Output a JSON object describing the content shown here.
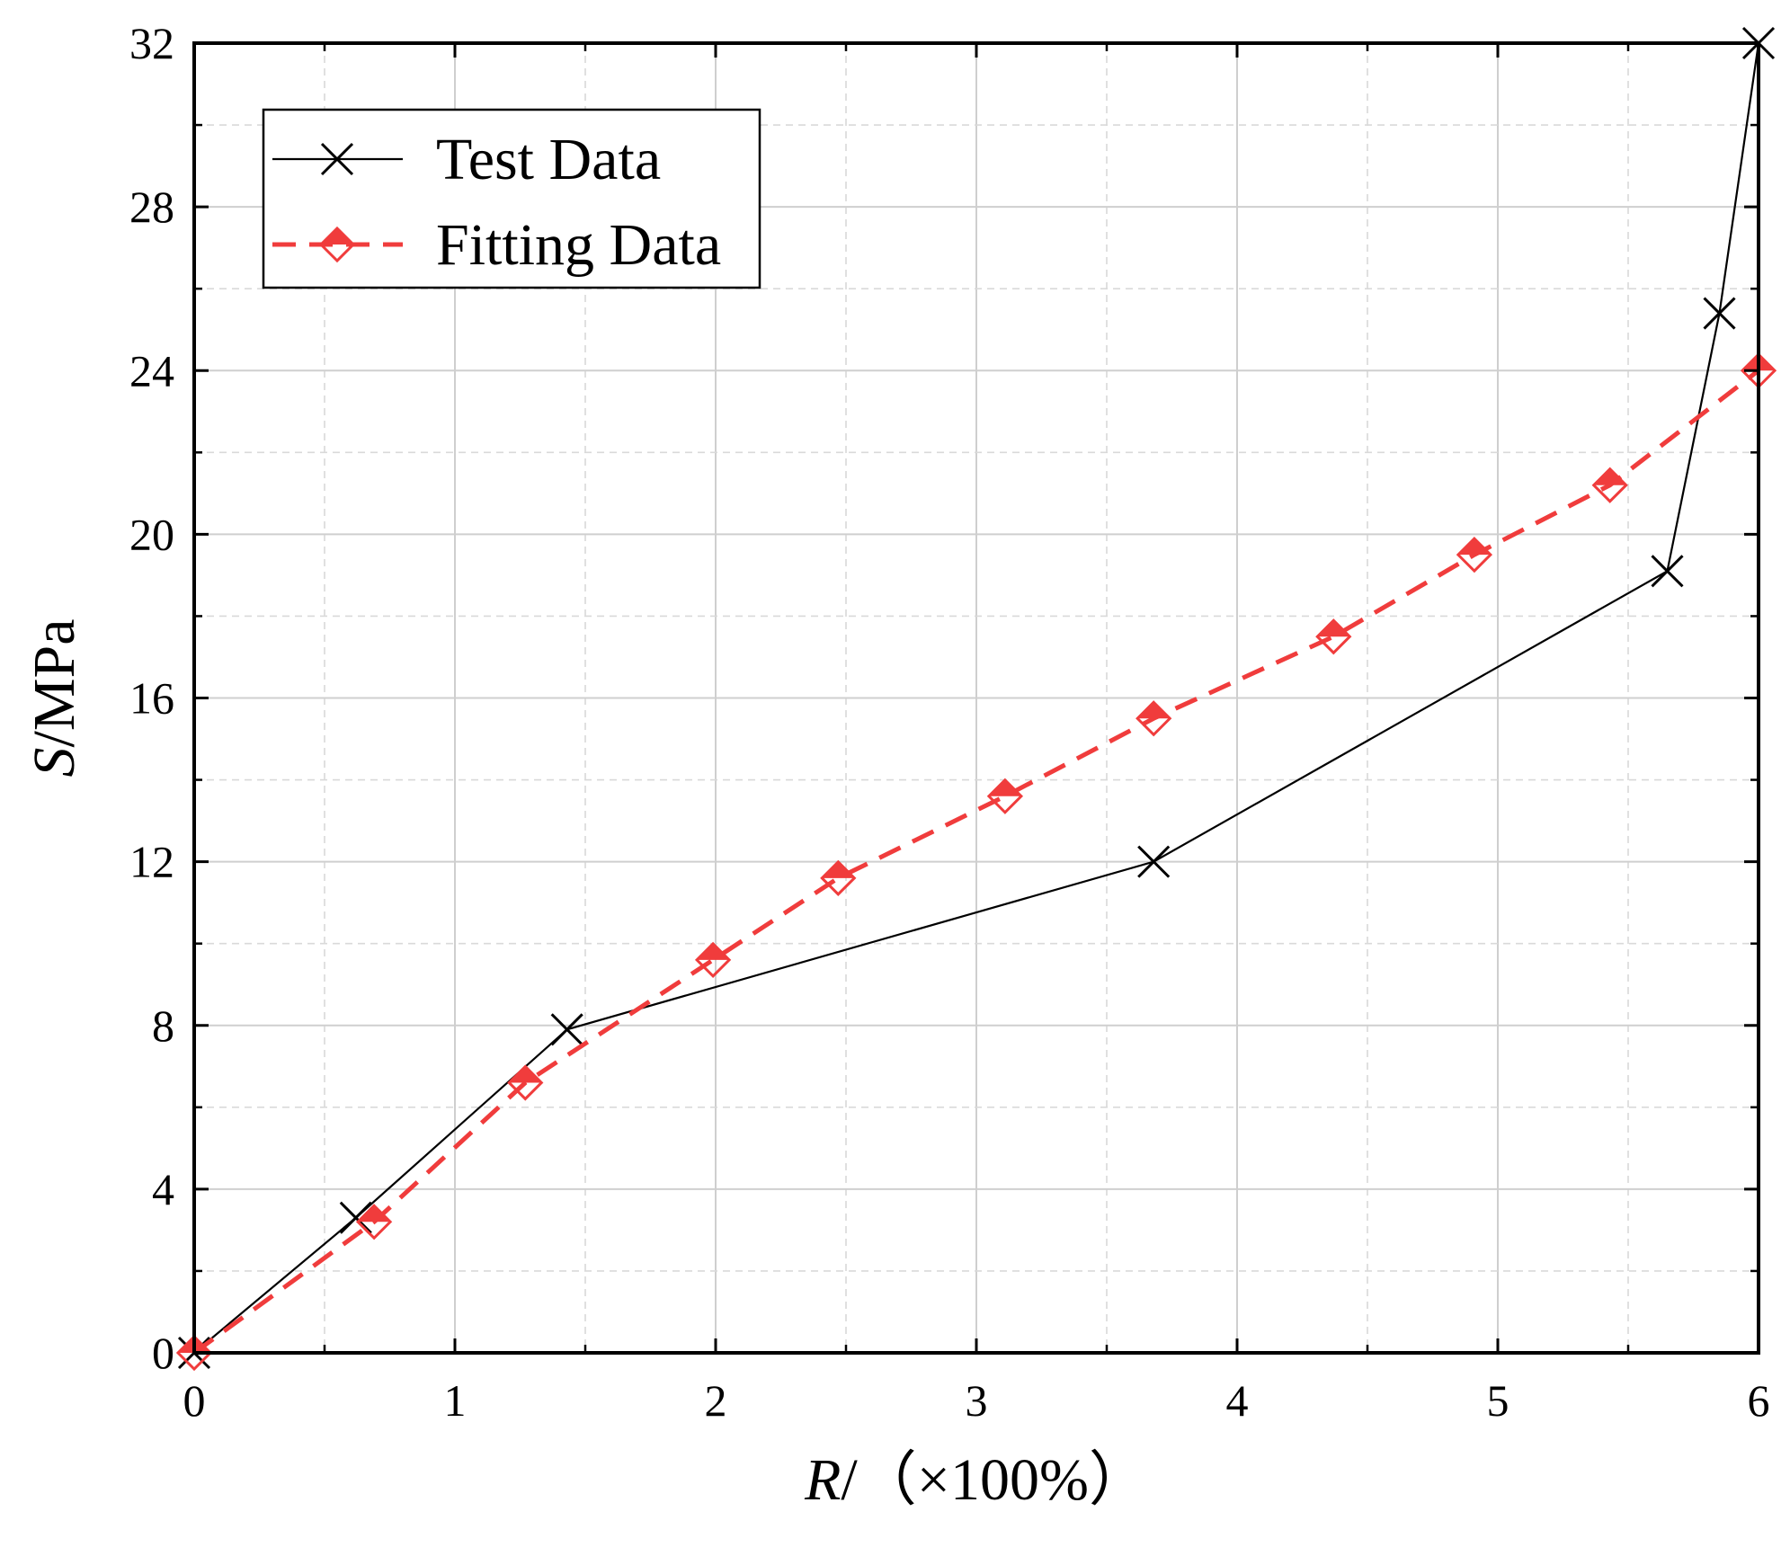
{
  "chart_data": {
    "type": "line",
    "title": "",
    "xlabel": {
      "var": "R",
      "sep": "/",
      "unit": "（×100%）"
    },
    "ylabel": {
      "var": "S",
      "sep": "/",
      "unit": "MPa"
    },
    "xlim": [
      0,
      6
    ],
    "ylim": [
      0,
      32
    ],
    "xticks": [
      "0",
      "1",
      "2",
      "3",
      "4",
      "5",
      "6"
    ],
    "yticks": [
      "0",
      "4",
      "8",
      "12",
      "16",
      "20",
      "24",
      "28",
      "32"
    ],
    "grid": true,
    "legend_position": "top-left",
    "series": [
      {
        "name": "Test Data",
        "color": "#000000",
        "line_style": "solid",
        "marker": "x",
        "x": [
          0.0,
          0.62,
          1.43,
          3.68,
          5.65,
          5.85,
          6.0
        ],
        "y": [
          0.0,
          3.3,
          7.9,
          12.0,
          19.1,
          25.4,
          32.0
        ]
      },
      {
        "name": "Fitting Data",
        "color": "#f03c3c",
        "line_style": "dashed",
        "marker": "diamond",
        "x": [
          0.0,
          0.69,
          1.27,
          1.99,
          2.47,
          3.11,
          3.68,
          4.37,
          4.91,
          5.43,
          6.0
        ],
        "y": [
          0.0,
          3.2,
          6.6,
          9.6,
          11.6,
          13.6,
          15.5,
          17.5,
          19.5,
          21.2,
          24.0
        ]
      }
    ]
  }
}
